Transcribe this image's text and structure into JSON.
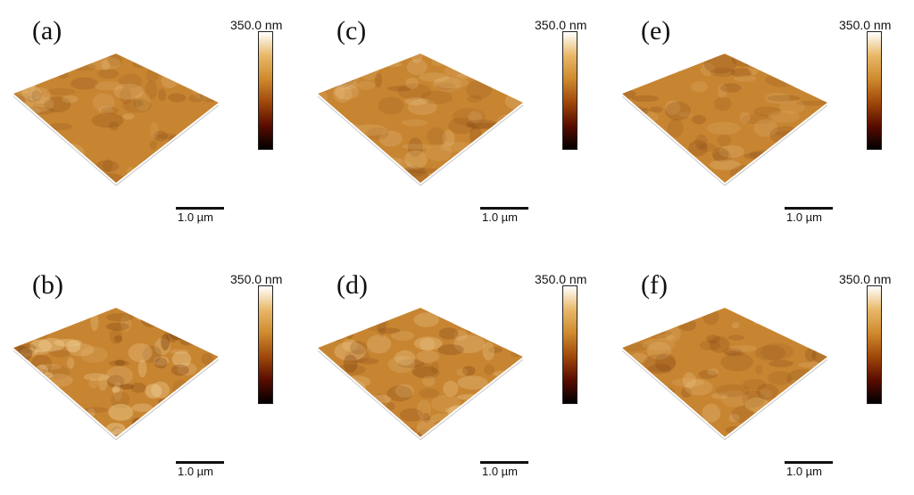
{
  "panels": [
    {
      "label": "(a)",
      "colorbar_max": "350.0 nm",
      "scale_bar": "1.0 µm",
      "roughness": "smooth"
    },
    {
      "label": "(c)",
      "colorbar_max": "350.0 nm",
      "scale_bar": "1.0 µm",
      "roughness": "smooth"
    },
    {
      "label": "(e)",
      "colorbar_max": "350.0 nm",
      "scale_bar": "1.0 µm",
      "roughness": "smooth"
    },
    {
      "label": "(b)",
      "colorbar_max": "350.0 nm",
      "scale_bar": "1.0 µm",
      "roughness": "rough"
    },
    {
      "label": "(d)",
      "colorbar_max": "350.0 nm",
      "scale_bar": "1.0 µm",
      "roughness": "grainy"
    },
    {
      "label": "(f)",
      "colorbar_max": "350.0 nm",
      "scale_bar": "1.0 µm",
      "roughness": "smooth"
    }
  ],
  "colors": {
    "colormap": [
      "#000000",
      "#5a0c00",
      "#a0480a",
      "#cf8a2e",
      "#e8b868",
      "#ffffff"
    ],
    "surface_base": "#c78532",
    "surface_dark": "#7a3e10",
    "surface_light": "#f2d29a"
  }
}
